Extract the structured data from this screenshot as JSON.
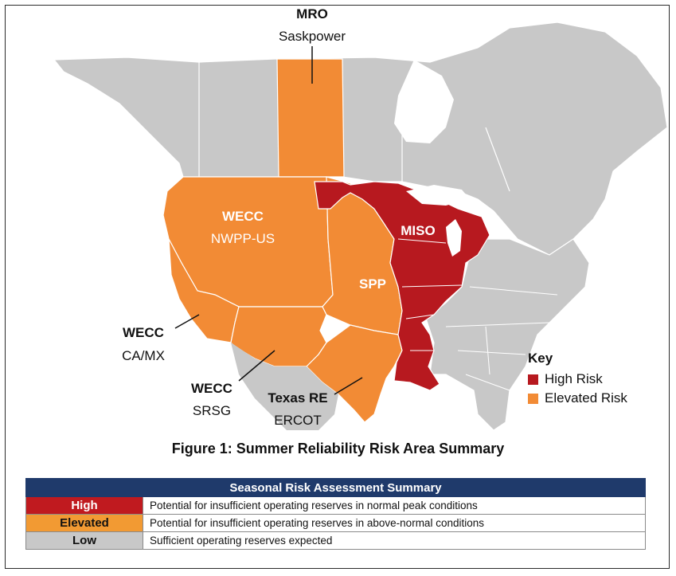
{
  "colors": {
    "high": "#b7191f",
    "elevated": "#f28b35",
    "low": "#c8c8c8",
    "background_land": "#c8c8c8",
    "water": "#ffffff",
    "table_header": "#1f3a6b"
  },
  "map": {
    "regions": [
      {
        "id": "mro-saskpower",
        "risk": "Elevated"
      },
      {
        "id": "wecc-nwpp-us",
        "risk": "Elevated"
      },
      {
        "id": "wecc-ca-mx",
        "risk": "Elevated"
      },
      {
        "id": "wecc-srsg",
        "risk": "Elevated"
      },
      {
        "id": "spp",
        "risk": "Elevated"
      },
      {
        "id": "texas-re-ercot",
        "risk": "Elevated"
      },
      {
        "id": "miso",
        "risk": "High"
      }
    ],
    "labels": {
      "mro_name": "MRO",
      "mro_sub": "Saskpower",
      "wecc_nwpp_name": "WECC",
      "wecc_nwpp_sub": "NWPP-US",
      "miso_name": "MISO",
      "spp_name": "SPP",
      "wecc_camx_name": "WECC",
      "wecc_camx_sub": "CA/MX",
      "wecc_srsg_name": "WECC",
      "wecc_srsg_sub": "SRSG",
      "texas_name": "Texas RE",
      "texas_sub": "ERCOT"
    }
  },
  "key": {
    "title": "Key",
    "items": [
      {
        "label": "High Risk",
        "color": "#b7191f"
      },
      {
        "label": "Elevated Risk",
        "color": "#f28b35"
      }
    ]
  },
  "caption": "Figure 1: Summer Reliability Risk Area Summary",
  "table": {
    "title": "Seasonal Risk Assessment Summary",
    "rows": [
      {
        "level": "High",
        "description": "Potential for insufficient operating reserves in normal peak conditions",
        "color": "#c01a1f",
        "text_color": "#ffffff"
      },
      {
        "level": "Elevated",
        "description": "Potential for insufficient operating reserves in above-normal conditions",
        "color": "#f29a33",
        "text_color": "#111111"
      },
      {
        "level": "Low",
        "description": "Sufficient operating reserves expected",
        "color": "#c8c8c8",
        "text_color": "#111111"
      }
    ]
  }
}
